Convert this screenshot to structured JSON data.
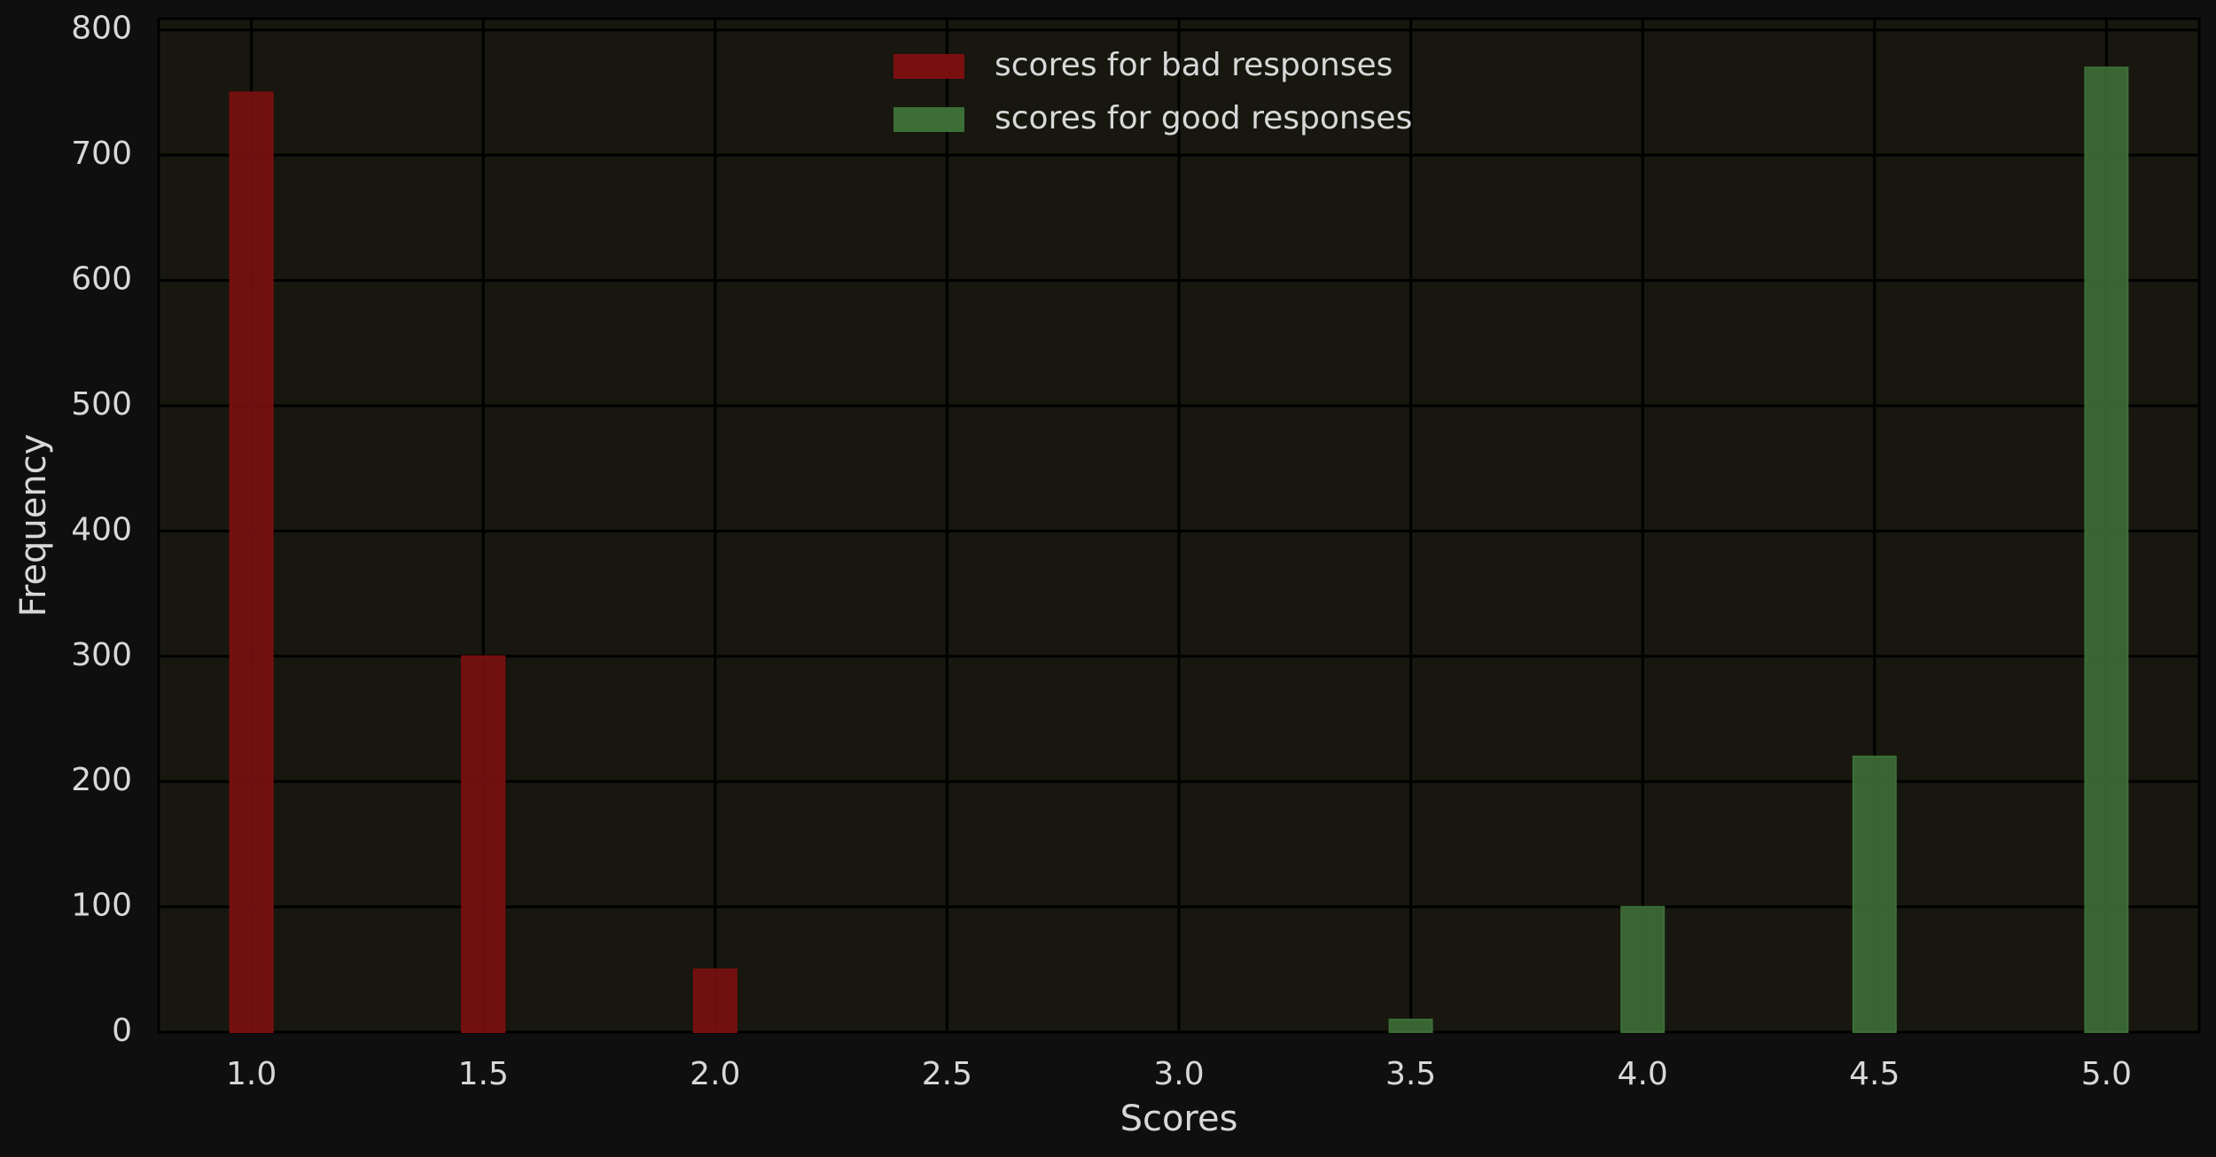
{
  "chart_data": {
    "type": "bar",
    "x_label": "Scores",
    "y_label": "Frequency",
    "series": [
      {
        "name": "scores for bad responses",
        "color": "#7a0f0f",
        "x": [
          1.0,
          1.5,
          2.0
        ],
        "values": [
          750,
          300,
          50
        ]
      },
      {
        "name": "scores for good responses",
        "color": "#3d6e37",
        "x": [
          3.5,
          4.0,
          4.5,
          5.0
        ],
        "values": [
          10,
          100,
          220,
          770
        ]
      }
    ],
    "xlim": [
      0.8,
      5.2
    ],
    "xticks": [
      {
        "value": 1,
        "label": "1.0"
      },
      {
        "value": 1.5,
        "label": "1.5"
      },
      {
        "value": 2,
        "label": "2.0"
      },
      {
        "value": 2.5,
        "label": "2.5"
      },
      {
        "value": 3,
        "label": "3.0"
      },
      {
        "value": 3.5,
        "label": "3.5"
      },
      {
        "value": 4,
        "label": "4.0"
      },
      {
        "value": 4.5,
        "label": "4.5"
      },
      {
        "value": 5,
        "label": "5.0"
      }
    ],
    "ylim": [
      0,
      809
    ],
    "yticks": [
      0,
      100,
      200,
      300,
      400,
      500,
      600,
      700,
      800
    ],
    "grid": true,
    "legend": "top"
  }
}
